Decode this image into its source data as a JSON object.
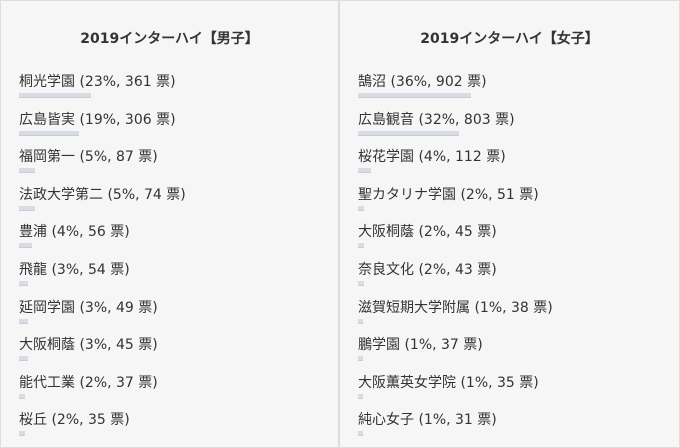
{
  "chart_data": [
    {
      "type": "bar",
      "title": "2019インターハイ【男子】",
      "categories": [
        "桐光学園",
        "広島皆実",
        "福岡第一",
        "法政大学第二",
        "豊浦",
        "飛龍",
        "延岡学園",
        "大阪桐蔭",
        "能代工業",
        "桜丘"
      ],
      "labels": [
        "桐光学園 (23%, 361 票)",
        "広島皆実 (19%, 306 票)",
        "福岡第一 (5%, 87 票)",
        "法政大学第二 (5%, 74 票)",
        "豊浦 (4%, 56 票)",
        "飛龍 (3%, 54 票)",
        "延岡学園 (3%, 49 票)",
        "大阪桐蔭 (3%, 45 票)",
        "能代工業 (2%, 37 票)",
        "桜丘 (2%, 35 票)"
      ],
      "percent": [
        23,
        19,
        5,
        5,
        4,
        3,
        3,
        3,
        2,
        2
      ],
      "values": [
        361,
        306,
        87,
        74,
        56,
        54,
        49,
        45,
        37,
        35
      ]
    },
    {
      "type": "bar",
      "title": "2019インターハイ【女子】",
      "categories": [
        "鵠沼",
        "広島観音",
        "桜花学園",
        "聖カタリナ学園",
        "大阪桐蔭",
        "奈良文化",
        "滋賀短期大学附属",
        "鵬学園",
        "大阪薫英女学院",
        "純心女子"
      ],
      "labels": [
        "鵠沼 (36%, 902 票)",
        "広島観音 (32%, 803 票)",
        "桜花学園 (4%, 112 票)",
        "聖カタリナ学園 (2%, 51 票)",
        "大阪桐蔭 (2%, 45 票)",
        "奈良文化 (2%, 43 票)",
        "滋賀短期大学附属 (1%, 38 票)",
        "鵬学園 (1%, 37 票)",
        "大阪薫英女学院 (1%, 35 票)",
        "純心女子 (1%, 31 票)"
      ],
      "percent": [
        36,
        32,
        4,
        2,
        2,
        2,
        1,
        1,
        1,
        1
      ],
      "values": [
        902,
        803,
        112,
        51,
        45,
        43,
        38,
        37,
        35,
        31
      ]
    }
  ]
}
